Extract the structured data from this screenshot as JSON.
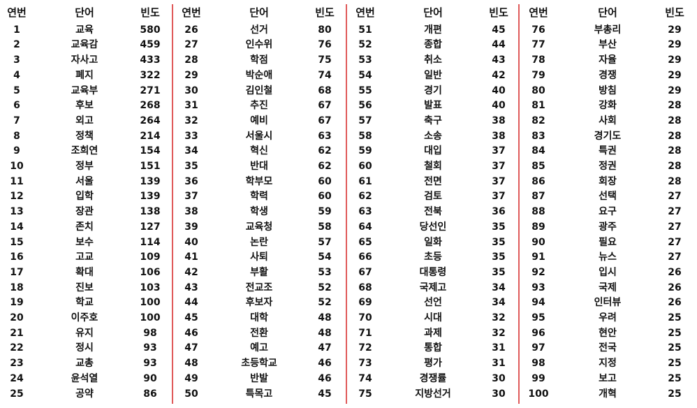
{
  "headers": {
    "rank": "연번",
    "word": "단어",
    "freq": "빈도"
  },
  "columns": [
    [
      [
        "1",
        "교육",
        "580"
      ],
      [
        "2",
        "교육감",
        "459"
      ],
      [
        "3",
        "자사고",
        "433"
      ],
      [
        "4",
        "폐지",
        "322"
      ],
      [
        "5",
        "교육부",
        "271"
      ],
      [
        "6",
        "후보",
        "268"
      ],
      [
        "7",
        "외고",
        "264"
      ],
      [
        "8",
        "정책",
        "214"
      ],
      [
        "9",
        "조희연",
        "154"
      ],
      [
        "10",
        "정부",
        "151"
      ],
      [
        "11",
        "서울",
        "139"
      ],
      [
        "12",
        "입학",
        "139"
      ],
      [
        "13",
        "장관",
        "138"
      ],
      [
        "14",
        "존치",
        "127"
      ],
      [
        "15",
        "보수",
        "114"
      ],
      [
        "16",
        "고교",
        "109"
      ],
      [
        "17",
        "확대",
        "106"
      ],
      [
        "18",
        "진보",
        "103"
      ],
      [
        "19",
        "학교",
        "100"
      ],
      [
        "20",
        "이주호",
        "100"
      ],
      [
        "21",
        "유지",
        "98"
      ],
      [
        "22",
        "정시",
        "93"
      ],
      [
        "23",
        "교총",
        "93"
      ],
      [
        "24",
        "윤석열",
        "90"
      ],
      [
        "25",
        "공약",
        "86"
      ]
    ],
    [
      [
        "26",
        "선거",
        "80"
      ],
      [
        "27",
        "인수위",
        "76"
      ],
      [
        "28",
        "학점",
        "75"
      ],
      [
        "29",
        "박순애",
        "74"
      ],
      [
        "30",
        "김인철",
        "68"
      ],
      [
        "31",
        "추진",
        "67"
      ],
      [
        "32",
        "예비",
        "67"
      ],
      [
        "33",
        "서울시",
        "63"
      ],
      [
        "34",
        "혁신",
        "62"
      ],
      [
        "35",
        "반대",
        "62"
      ],
      [
        "36",
        "학부모",
        "60"
      ],
      [
        "37",
        "학력",
        "60"
      ],
      [
        "38",
        "학생",
        "59"
      ],
      [
        "39",
        "교육청",
        "58"
      ],
      [
        "40",
        "논란",
        "57"
      ],
      [
        "41",
        "사퇴",
        "54"
      ],
      [
        "42",
        "부활",
        "53"
      ],
      [
        "43",
        "전교조",
        "52"
      ],
      [
        "44",
        "후보자",
        "52"
      ],
      [
        "45",
        "대학",
        "48"
      ],
      [
        "46",
        "전환",
        "48"
      ],
      [
        "47",
        "예고",
        "47"
      ],
      [
        "48",
        "초등학교",
        "46"
      ],
      [
        "49",
        "반발",
        "46"
      ],
      [
        "50",
        "특목고",
        "45"
      ]
    ],
    [
      [
        "51",
        "개편",
        "45"
      ],
      [
        "52",
        "종합",
        "44"
      ],
      [
        "53",
        "취소",
        "43"
      ],
      [
        "54",
        "일반",
        "42"
      ],
      [
        "55",
        "경기",
        "40"
      ],
      [
        "56",
        "발표",
        "40"
      ],
      [
        "57",
        "축구",
        "38"
      ],
      [
        "58",
        "소송",
        "38"
      ],
      [
        "59",
        "대입",
        "37"
      ],
      [
        "60",
        "철회",
        "37"
      ],
      [
        "61",
        "전면",
        "37"
      ],
      [
        "62",
        "검토",
        "37"
      ],
      [
        "63",
        "전북",
        "36"
      ],
      [
        "64",
        "당선인",
        "35"
      ],
      [
        "65",
        "일화",
        "35"
      ],
      [
        "66",
        "초등",
        "35"
      ],
      [
        "67",
        "대통령",
        "35"
      ],
      [
        "68",
        "국제고",
        "34"
      ],
      [
        "69",
        "선언",
        "34"
      ],
      [
        "70",
        "시대",
        "32"
      ],
      [
        "71",
        "과제",
        "32"
      ],
      [
        "72",
        "통합",
        "31"
      ],
      [
        "73",
        "평가",
        "31"
      ],
      [
        "74",
        "경쟁률",
        "30"
      ],
      [
        "75",
        "지방선거",
        "30"
      ]
    ],
    [
      [
        "76",
        "부총리",
        "29"
      ],
      [
        "77",
        "부산",
        "29"
      ],
      [
        "78",
        "자율",
        "29"
      ],
      [
        "79",
        "경쟁",
        "29"
      ],
      [
        "80",
        "방침",
        "29"
      ],
      [
        "81",
        "강화",
        "28"
      ],
      [
        "82",
        "사회",
        "28"
      ],
      [
        "83",
        "경기도",
        "28"
      ],
      [
        "84",
        "특권",
        "28"
      ],
      [
        "85",
        "정권",
        "28"
      ],
      [
        "86",
        "회장",
        "28"
      ],
      [
        "87",
        "선택",
        "27"
      ],
      [
        "88",
        "요구",
        "27"
      ],
      [
        "89",
        "광주",
        "27"
      ],
      [
        "90",
        "필요",
        "27"
      ],
      [
        "91",
        "뉴스",
        "27"
      ],
      [
        "92",
        "입시",
        "26"
      ],
      [
        "93",
        "국제",
        "26"
      ],
      [
        "94",
        "인터뷰",
        "26"
      ],
      [
        "95",
        "우려",
        "25"
      ],
      [
        "96",
        "현안",
        "25"
      ],
      [
        "97",
        "전국",
        "25"
      ],
      [
        "98",
        "지정",
        "25"
      ],
      [
        "99",
        "보고",
        "25"
      ],
      [
        "100",
        "개혁",
        "25"
      ]
    ]
  ]
}
